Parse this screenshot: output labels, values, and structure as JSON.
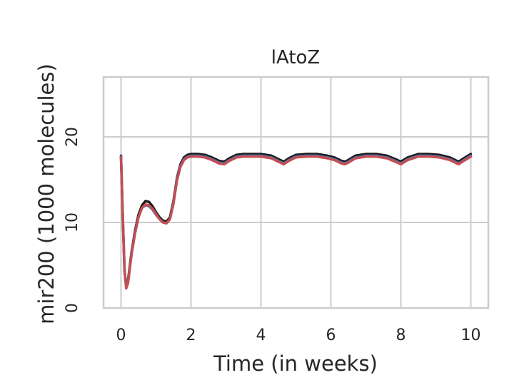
{
  "chart_data": {
    "type": "line",
    "title": "lAtoZ",
    "xlabel": "Time (in weeks)",
    "ylabel": "mir200 (1000 molecules)",
    "xlim": [
      -0.5,
      10.5
    ],
    "ylim": [
      0,
      27
    ],
    "xticks": [
      0,
      2,
      4,
      6,
      8,
      10
    ],
    "yticks": [
      0,
      10,
      20
    ],
    "grid": true,
    "series": [
      {
        "color": "#1a1a1a",
        "x": [
          0,
          0.05,
          0.1,
          0.15,
          0.2,
          0.3,
          0.4,
          0.5,
          0.6,
          0.7,
          0.8,
          0.9,
          1.0,
          1.1,
          1.2,
          1.3,
          1.4,
          1.5,
          1.6,
          1.7,
          1.8,
          1.9,
          2.0,
          2.2,
          2.4,
          2.6,
          2.8,
          2.95,
          3.1,
          3.3,
          3.5,
          3.8,
          4.0,
          4.3,
          4.5,
          4.65,
          4.8,
          5.0,
          5.3,
          5.6,
          5.9,
          6.1,
          6.3,
          6.4,
          6.5,
          6.7,
          7.0,
          7.3,
          7.6,
          7.9,
          8.0,
          8.2,
          8.5,
          8.8,
          9.1,
          9.4,
          9.65,
          9.8,
          10.0
        ],
        "values": [
          17.8,
          11.0,
          4.5,
          2.6,
          3.2,
          6.5,
          9.0,
          10.9,
          12.0,
          12.5,
          12.4,
          11.9,
          11.2,
          10.6,
          10.2,
          10.1,
          10.6,
          12.5,
          15.2,
          16.8,
          17.6,
          17.9,
          18.0,
          18.0,
          17.9,
          17.6,
          17.2,
          17.1,
          17.5,
          17.9,
          18.0,
          18.0,
          18.0,
          17.8,
          17.4,
          17.1,
          17.5,
          17.9,
          18.0,
          18.0,
          17.8,
          17.6,
          17.2,
          17.1,
          17.3,
          17.8,
          18.0,
          18.0,
          17.8,
          17.3,
          17.1,
          17.6,
          18.0,
          18.0,
          17.9,
          17.6,
          17.1,
          17.5,
          18.0
        ]
      },
      {
        "color": "#4c72b0",
        "x": [
          0,
          0.05,
          0.1,
          0.15,
          0.2,
          0.3,
          0.4,
          0.5,
          0.6,
          0.7,
          0.8,
          0.9,
          1.0,
          1.1,
          1.2,
          1.3,
          1.4,
          1.5,
          1.6,
          1.7,
          1.8,
          1.9,
          2.0,
          2.2,
          2.4,
          2.6,
          2.8,
          2.95,
          3.1,
          3.3,
          3.5,
          3.8,
          4.0,
          4.3,
          4.5,
          4.65,
          4.8,
          5.0,
          5.3,
          5.6,
          5.9,
          6.1,
          6.3,
          6.4,
          6.5,
          6.7,
          7.0,
          7.3,
          7.6,
          7.9,
          8.0,
          8.2,
          8.5,
          8.8,
          9.1,
          9.4,
          9.65,
          9.8,
          10.0
        ],
        "values": [
          17.7,
          10.8,
          4.4,
          2.4,
          3.0,
          6.3,
          8.8,
          10.6,
          11.7,
          12.0,
          11.9,
          11.5,
          10.9,
          10.4,
          10.0,
          9.9,
          10.4,
          12.3,
          15.0,
          16.6,
          17.4,
          17.7,
          17.8,
          17.8,
          17.7,
          17.4,
          17.0,
          16.9,
          17.3,
          17.7,
          17.8,
          17.8,
          17.8,
          17.6,
          17.2,
          16.9,
          17.3,
          17.7,
          17.8,
          17.8,
          17.6,
          17.4,
          17.0,
          16.9,
          17.1,
          17.6,
          17.8,
          17.8,
          17.6,
          17.1,
          16.9,
          17.4,
          17.8,
          17.8,
          17.7,
          17.4,
          16.9,
          17.3,
          17.8
        ]
      },
      {
        "color": "#c44e52",
        "x": [
          0,
          0.05,
          0.1,
          0.15,
          0.2,
          0.3,
          0.4,
          0.5,
          0.6,
          0.7,
          0.8,
          0.9,
          1.0,
          1.1,
          1.2,
          1.3,
          1.4,
          1.5,
          1.6,
          1.7,
          1.8,
          1.9,
          2.0,
          2.2,
          2.4,
          2.6,
          2.8,
          2.95,
          3.1,
          3.3,
          3.5,
          3.8,
          4.0,
          4.3,
          4.5,
          4.65,
          4.8,
          5.0,
          5.3,
          5.6,
          5.9,
          6.1,
          6.3,
          6.4,
          6.5,
          6.7,
          7.0,
          7.3,
          7.6,
          7.9,
          8.0,
          8.2,
          8.5,
          8.8,
          9.1,
          9.4,
          9.65,
          9.8,
          10.0
        ],
        "values": [
          17.6,
          10.7,
          4.3,
          2.3,
          2.9,
          6.2,
          8.7,
          10.6,
          11.7,
          12.1,
          12.0,
          11.6,
          11.0,
          10.4,
          10.0,
          9.9,
          10.4,
          12.2,
          14.9,
          16.5,
          17.3,
          17.6,
          17.7,
          17.7,
          17.6,
          17.3,
          16.9,
          16.8,
          17.2,
          17.6,
          17.7,
          17.7,
          17.7,
          17.5,
          17.1,
          16.8,
          17.2,
          17.6,
          17.7,
          17.7,
          17.5,
          17.3,
          16.9,
          16.8,
          17.0,
          17.5,
          17.7,
          17.7,
          17.5,
          17.0,
          16.8,
          17.3,
          17.7,
          17.7,
          17.6,
          17.3,
          16.8,
          17.2,
          17.7
        ]
      }
    ]
  }
}
